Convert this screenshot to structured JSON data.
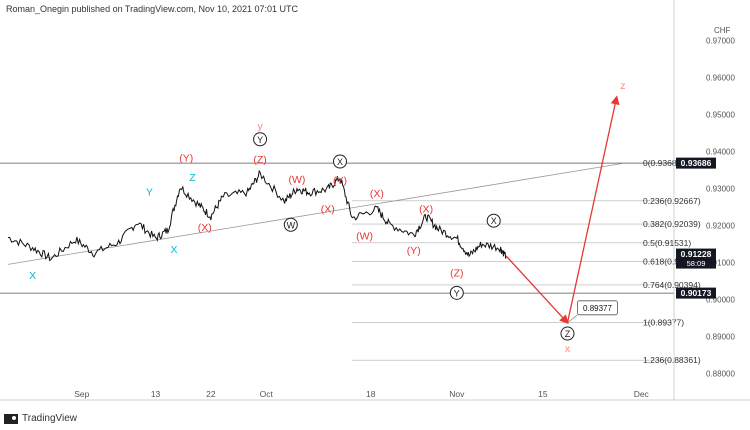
{
  "header": {
    "attribution": "Roman_Onegin published on TradingView.com, Nov 10, 2021 07:01 UTC"
  },
  "footer": {
    "brand": "TradingView"
  },
  "chart_data": {
    "type": "line",
    "title": "",
    "currency_label": "CHF",
    "y_axis": {
      "min": 0.875,
      "max": 0.975,
      "position": "right",
      "ticks": [
        "0.97000",
        "0.96000",
        "0.95000",
        "0.94000",
        "0.93000",
        "0.92000",
        "0.91000",
        "0.90000",
        "0.89000",
        "0.88000"
      ],
      "tick_values": [
        0.97,
        0.96,
        0.95,
        0.94,
        0.93,
        0.92,
        0.91,
        0.9,
        0.89,
        0.88
      ]
    },
    "x_axis": {
      "ticks": [
        "Sep",
        "13",
        "22",
        "Oct",
        "18",
        "Nov",
        "15",
        "Dec"
      ],
      "tick_dates": [
        "2021-09-01",
        "2021-09-13",
        "2021-09-22",
        "2021-10-01",
        "2021-10-18",
        "2021-11-01",
        "2021-11-15",
        "2021-12-01"
      ],
      "range": [
        "2021-08-20",
        "2021-12-06"
      ]
    },
    "price_labels": [
      {
        "text": "0.93686",
        "value": 0.93686,
        "style": "dark"
      },
      {
        "text": "0.91228",
        "value": 0.91228,
        "style": "dark",
        "sub": "58:09"
      },
      {
        "text": "0.90173",
        "value": 0.90173,
        "style": "dark"
      }
    ],
    "fib_levels": [
      {
        "text": "0(0.93684)",
        "value": 0.93684
      },
      {
        "text": "0.236(0.92667)",
        "value": 0.92667
      },
      {
        "text": "0.382(0.92039)",
        "value": 0.92039
      },
      {
        "text": "0.5(0.91531)",
        "value": 0.91531
      },
      {
        "text": "0.618(0.91022)",
        "value": 0.91022
      },
      {
        "text": "0.764(0.90394)",
        "value": 0.90394
      },
      {
        "text": "1(0.89377)",
        "value": 0.89377
      },
      {
        "text": "1.236(0.88361)",
        "value": 0.88361
      }
    ],
    "horizontal_lines": [
      {
        "value": 0.93686
      },
      {
        "value": 0.90173
      }
    ],
    "trendline": [
      {
        "x": "2021-08-20",
        "y": 0.9095
      },
      {
        "x": "2021-11-28",
        "y": 0.9368
      }
    ],
    "projection": [
      {
        "x": "2021-11-09",
        "y": 0.9118
      },
      {
        "x": "2021-11-19",
        "y": 0.8937
      },
      {
        "x": "2021-11-27",
        "y": 0.9547
      }
    ],
    "target_box": {
      "text": "0.89377",
      "x": "2021-11-19",
      "y": 0.8937
    },
    "price_series": {
      "dates": [
        "2021-08-20",
        "2021-08-24",
        "2021-08-27",
        "2021-08-31",
        "2021-09-03",
        "2021-09-07",
        "2021-09-10",
        "2021-09-13",
        "2021-09-15",
        "2021-09-17",
        "2021-09-20",
        "2021-09-22",
        "2021-09-24",
        "2021-09-28",
        "2021-09-30",
        "2021-10-04",
        "2021-10-06",
        "2021-10-08",
        "2021-10-11",
        "2021-10-13",
        "2021-10-15",
        "2021-10-19",
        "2021-10-21",
        "2021-10-25",
        "2021-10-27",
        "2021-10-29",
        "2021-11-01",
        "2021-11-03",
        "2021-11-05",
        "2021-11-08",
        "2021-11-09"
      ],
      "values": [
        0.9168,
        0.914,
        0.911,
        0.9162,
        0.9125,
        0.9155,
        0.9209,
        0.9165,
        0.9188,
        0.9305,
        0.9256,
        0.9225,
        0.9278,
        0.929,
        0.934,
        0.9265,
        0.93,
        0.929,
        0.9298,
        0.933,
        0.922,
        0.9245,
        0.9203,
        0.9175,
        0.9225,
        0.919,
        0.9165,
        0.9118,
        0.915,
        0.914,
        0.9118
      ]
    },
    "wave_labels": [
      {
        "text": "X",
        "x": "2021-08-24",
        "y": 0.9065,
        "color": "#00bcd4",
        "circled": false
      },
      {
        "text": "Y",
        "x": "2021-09-12",
        "y": 0.929,
        "color": "#00bcd4",
        "circled": false
      },
      {
        "text": "X",
        "x": "2021-09-16",
        "y": 0.9135,
        "color": "#00bcd4",
        "circled": false
      },
      {
        "text": "Z",
        "x": "2021-09-19",
        "y": 0.933,
        "color": "#00bcd4",
        "circled": false
      },
      {
        "text": "(Y)",
        "x": "2021-09-18",
        "y": 0.9383,
        "color": "#e53935",
        "circled": false
      },
      {
        "text": "(X)",
        "x": "2021-09-21",
        "y": 0.9195,
        "color": "#e53935",
        "circled": false
      },
      {
        "text": "y",
        "x": "2021-09-30",
        "y": 0.9469,
        "color": "#f28b82",
        "circled": false
      },
      {
        "text": "Y",
        "x": "2021-09-30",
        "y": 0.9433,
        "color": "#222222",
        "circled": true
      },
      {
        "text": "(Z)",
        "x": "2021-09-30",
        "y": 0.9378,
        "color": "#e53935",
        "circled": false
      },
      {
        "text": "(W)",
        "x": "2021-10-06",
        "y": 0.9325,
        "color": "#e53935",
        "circled": false
      },
      {
        "text": "W",
        "x": "2021-10-05",
        "y": 0.9202,
        "color": "#222222",
        "circled": true
      },
      {
        "text": "X",
        "x": "2021-10-13",
        "y": 0.9373,
        "color": "#222222",
        "circled": true
      },
      {
        "text": "(Y)",
        "x": "2021-10-13",
        "y": 0.9322,
        "color": "#e53935",
        "circled": false
      },
      {
        "text": "(X)",
        "x": "2021-10-11",
        "y": 0.9245,
        "color": "#e53935",
        "circled": false
      },
      {
        "text": "(X)",
        "x": "2021-10-19",
        "y": 0.9286,
        "color": "#e53935",
        "circled": false
      },
      {
        "text": "(W)",
        "x": "2021-10-17",
        "y": 0.9172,
        "color": "#e53935",
        "circled": false
      },
      {
        "text": "(X)",
        "x": "2021-10-27",
        "y": 0.9245,
        "color": "#e53935",
        "circled": false
      },
      {
        "text": "(Y)",
        "x": "2021-10-25",
        "y": 0.9133,
        "color": "#e53935",
        "circled": false
      },
      {
        "text": "(Z)",
        "x": "2021-11-01",
        "y": 0.9071,
        "color": "#e53935",
        "circled": false
      },
      {
        "text": "Y",
        "x": "2021-11-01",
        "y": 0.9018,
        "color": "#222222",
        "circled": true
      },
      {
        "text": "X",
        "x": "2021-11-07",
        "y": 0.9213,
        "color": "#222222",
        "circled": true
      },
      {
        "text": "Z",
        "x": "2021-11-19",
        "y": 0.8908,
        "color": "#222222",
        "circled": true
      },
      {
        "text": "x",
        "x": "2021-11-19",
        "y": 0.8868,
        "color": "#f28b82",
        "circled": false
      },
      {
        "text": "z",
        "x": "2021-11-28",
        "y": 0.9578,
        "color": "#f28b82",
        "circled": false
      }
    ]
  }
}
